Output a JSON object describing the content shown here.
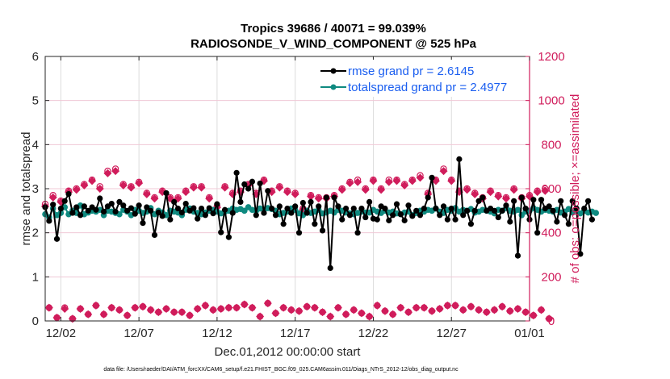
{
  "chart_data": {
    "type": "line",
    "title": [
      "Tropics 39686 / 40071 = 99.039%",
      "RADIOSONDE_V_WIND_COMPONENT @ 525 hPa"
    ],
    "xlabel": "Dec.01,2012 00:00:00 start",
    "ylabel": "rmse and totalspread",
    "ylabel_right": "# of obs: o=possible; ×=assimilated",
    "footnote": "data file: /Users/raeder/DAI/ATM_forcXX/CAM6_setup/f.e21.FHIST_BGC.f09_025.CAM6assim.011/Diags_NTrS_2012-12/obs_diag_output.nc",
    "x_unit": "days since Dec.01,2012 00:00",
    "xlim": [
      0,
      31
    ],
    "x_ticks": [
      1,
      6,
      11,
      16,
      21,
      26,
      31
    ],
    "x_tick_labels": [
      "12/02",
      "12/07",
      "12/12",
      "12/17",
      "12/22",
      "12/27",
      "01/01"
    ],
    "ylim": [
      0,
      6
    ],
    "y_ticks": [
      0,
      1,
      2,
      3,
      4,
      5,
      6
    ],
    "ylim_right": [
      0,
      1200
    ],
    "y_ticks_right": [
      0,
      200,
      400,
      600,
      800,
      1000,
      1200
    ],
    "grid": true,
    "legend": {
      "position": "top-right",
      "entries": [
        {
          "label": "rmse grand pr = 2.6145",
          "color": "#000000"
        },
        {
          "label": "totalspread grand pr = 2.4977",
          "color": "#0f8a80"
        }
      ]
    },
    "colors": {
      "rmse": "#000000",
      "spread": "#0f8a80",
      "obs": "#d01c5b",
      "legend_text": "#1a5ef0"
    },
    "time_step_days": 0.25,
    "t0_days": 0.25,
    "series": [
      {
        "name": "rmse",
        "axis": "left",
        "values": [
          2.58,
          2.27,
          2.64,
          1.86,
          2.55,
          2.72,
          2.88,
          2.45,
          2.58,
          2.4,
          2.6,
          2.5,
          2.58,
          2.52,
          2.78,
          2.48,
          2.6,
          2.66,
          2.48,
          2.7,
          2.62,
          2.5,
          2.56,
          2.43,
          2.62,
          2.22,
          2.58,
          2.5,
          1.95,
          2.46,
          2.38,
          2.9,
          2.3,
          2.7,
          2.55,
          2.46,
          2.66,
          2.5,
          2.56,
          2.32,
          2.55,
          2.4,
          2.56,
          2.44,
          2.65,
          2.01,
          2.52,
          1.9,
          2.45,
          3.36,
          2.7,
          3.1,
          3.0,
          3.16,
          2.4,
          3.12,
          2.45,
          2.95,
          2.55,
          2.4,
          2.6,
          2.2,
          2.55,
          2.45,
          2.6,
          2.0,
          2.68,
          2.45,
          2.7,
          2.2,
          2.6,
          2.05,
          2.8,
          1.2,
          2.8,
          2.6,
          2.3,
          2.55,
          2.4,
          2.55,
          2.0,
          2.55,
          2.35,
          2.7,
          2.32,
          2.3,
          2.6,
          2.55,
          2.28,
          2.4,
          2.65,
          2.42,
          2.28,
          2.62,
          2.38,
          2.5,
          2.4,
          2.55,
          2.8,
          3.25,
          2.55,
          2.4,
          2.6,
          2.3,
          2.55,
          2.3,
          3.67,
          2.4,
          2.5,
          2.2,
          2.5,
          2.72,
          2.8,
          2.5,
          2.55,
          2.5,
          2.35,
          2.5,
          2.62,
          2.25,
          2.72,
          1.48,
          2.8,
          2.55,
          2.3,
          2.75,
          2.0,
          2.75,
          2.55,
          2.6,
          2.5,
          2.25,
          2.72,
          2.4,
          2.2,
          2.72,
          2.55,
          1.52,
          2.55,
          2.72,
          2.3
        ]
      },
      {
        "name": "totalspread",
        "axis": "left",
        "values": [
          2.42,
          2.35,
          2.55,
          2.4,
          2.45,
          2.58,
          2.42,
          2.5,
          2.45,
          2.62,
          2.42,
          2.46,
          2.5,
          2.48,
          2.52,
          2.4,
          2.5,
          2.48,
          2.45,
          2.42,
          2.52,
          2.48,
          2.4,
          2.52,
          2.5,
          2.45,
          2.48,
          2.56,
          2.42,
          2.5,
          2.46,
          2.4,
          2.5,
          2.48,
          2.46,
          2.4,
          2.52,
          2.55,
          2.48,
          2.45,
          2.42,
          2.46,
          2.5,
          2.52,
          2.48,
          2.44,
          2.48,
          2.5,
          2.55,
          2.52,
          2.54,
          2.5,
          2.58,
          2.52,
          2.5,
          2.55,
          2.52,
          2.56,
          2.54,
          2.5,
          2.42,
          2.45,
          2.48,
          2.55,
          2.52,
          2.44,
          2.4,
          2.5,
          2.45,
          2.48,
          2.52,
          2.44,
          2.46,
          2.5,
          2.46,
          2.52,
          2.5,
          2.46,
          2.44,
          2.42,
          2.45,
          2.48,
          2.46,
          2.46,
          2.52,
          2.48,
          2.45,
          2.5,
          2.46,
          2.48,
          2.44,
          2.42,
          2.46,
          2.48,
          2.4,
          2.45,
          2.5,
          2.48,
          2.52,
          2.5,
          2.55,
          2.48,
          2.45,
          2.52,
          2.5,
          2.56,
          2.48,
          2.52,
          2.5,
          2.54,
          2.46,
          2.48,
          2.52,
          2.5,
          2.48,
          2.44,
          2.52,
          2.5,
          2.56,
          2.5,
          2.48,
          2.52,
          2.4,
          2.48,
          2.5,
          2.56,
          2.52,
          2.48,
          2.52,
          2.5,
          2.48,
          2.52,
          2.46,
          2.48,
          2.54,
          2.46,
          2.55,
          2.44,
          2.5,
          2.46,
          2.48,
          2.45
        ]
      },
      {
        "name": "possible",
        "axis": "right",
        "values": [
          530,
          60,
          570,
          15,
          545,
          60,
          590,
          10,
          600,
          55,
          620,
          30,
          640,
          70,
          610,
          30,
          680,
          60,
          690,
          50,
          620,
          25,
          610,
          60,
          630,
          65,
          580,
          50,
          560,
          40,
          590,
          55,
          560,
          40,
          560,
          40,
          590,
          25,
          610,
          55,
          610,
          70,
          560,
          50,
          520,
          55,
          610,
          60,
          580,
          60,
          590,
          75,
          620,
          60,
          580,
          20,
          640,
          80,
          590,
          35,
          610,
          60,
          590,
          50,
          580,
          45,
          510,
          65,
          570,
          60,
          560,
          40,
          560,
          20,
          570,
          60,
          600,
          30,
          630,
          50,
          640,
          35,
          600,
          20,
          640,
          70,
          600,
          45,
          640,
          30,
          640,
          60,
          620,
          40,
          640,
          60,
          660,
          60,
          580,
          45,
          640,
          55,
          690,
          70,
          640,
          70,
          590,
          50,
          600,
          65,
          580,
          50,
          560,
          40,
          590,
          50,
          570,
          65,
          560,
          45,
          600,
          55,
          560,
          40,
          570,
          25,
          590,
          50,
          600,
          10
        ]
      },
      {
        "name": "assimilated",
        "axis": "right",
        "values": [
          520,
          60,
          560,
          15,
          540,
          55,
          585,
          10,
          595,
          55,
          615,
          30,
          635,
          70,
          600,
          30,
          670,
          60,
          680,
          50,
          615,
          25,
          605,
          60,
          625,
          65,
          575,
          50,
          555,
          40,
          585,
          55,
          555,
          40,
          555,
          40,
          585,
          25,
          605,
          55,
          605,
          70,
          555,
          50,
          515,
          55,
          605,
          60,
          575,
          60,
          585,
          75,
          615,
          60,
          575,
          20,
          635,
          80,
          585,
          35,
          605,
          60,
          585,
          50,
          575,
          45,
          505,
          65,
          565,
          60,
          555,
          40,
          555,
          20,
          565,
          60,
          595,
          30,
          625,
          50,
          630,
          35,
          595,
          20,
          635,
          70,
          595,
          45,
          630,
          30,
          635,
          60,
          615,
          40,
          635,
          60,
          650,
          60,
          575,
          45,
          635,
          55,
          680,
          70,
          635,
          70,
          585,
          50,
          595,
          65,
          575,
          50,
          555,
          40,
          585,
          50,
          565,
          65,
          555,
          45,
          595,
          55,
          555,
          40,
          565,
          25,
          585,
          50,
          590,
          10
        ]
      }
    ]
  }
}
